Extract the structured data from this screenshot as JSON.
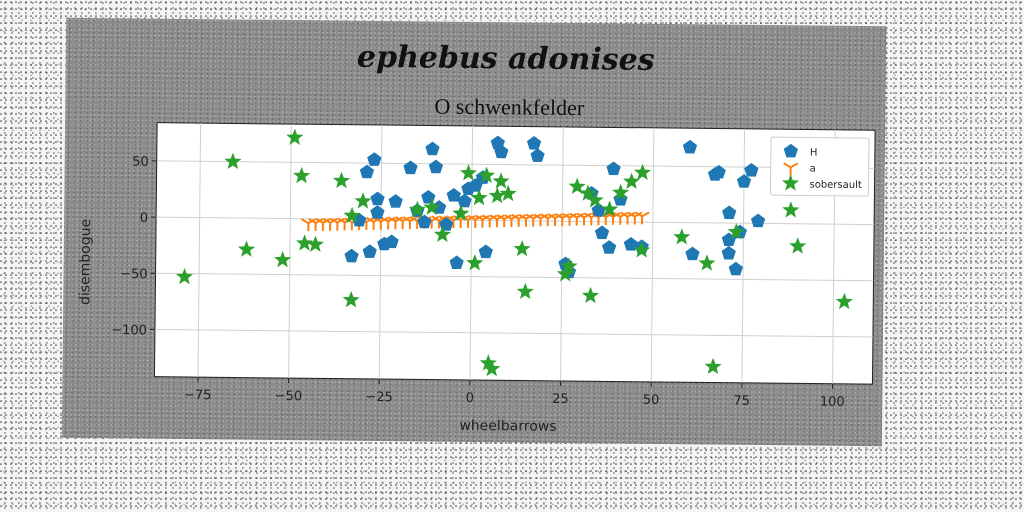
{
  "chart_data": {
    "type": "scatter",
    "title": "ephebus adonises",
    "subtitle": "O schwenkfelder",
    "xlabel": "wheelbarrows",
    "ylabel": "disembogue",
    "xlim": [
      -87,
      111
    ],
    "ylim": [
      -142,
      84
    ],
    "xticks": [
      -75,
      -50,
      -25,
      0,
      25,
      50,
      75,
      100
    ],
    "yticks": [
      50,
      0,
      -50,
      -100
    ],
    "grid": true,
    "legend_position": "top-right",
    "series": [
      {
        "name": "H",
        "marker": "pentagon",
        "color": "#1f77b4",
        "points": [
          [
            -33,
            -33
          ],
          [
            -31,
            -1
          ],
          [
            -28,
            -29
          ],
          [
            -29,
            42
          ],
          [
            -27,
            53
          ],
          [
            -26,
            18
          ],
          [
            -26,
            6
          ],
          [
            -24,
            -22
          ],
          [
            -22,
            -20
          ],
          [
            -21,
            16
          ],
          [
            -17,
            46
          ],
          [
            -15,
            8
          ],
          [
            -13,
            -2
          ],
          [
            -12,
            20
          ],
          [
            -11,
            63
          ],
          [
            -10,
            47
          ],
          [
            -9,
            11
          ],
          [
            -7,
            -4
          ],
          [
            -5,
            22
          ],
          [
            -4,
            -38
          ],
          [
            -2,
            17
          ],
          [
            -1,
            28
          ],
          [
            1,
            31
          ],
          [
            3,
            38
          ],
          [
            4,
            -28
          ],
          [
            7,
            69
          ],
          [
            8,
            61
          ],
          [
            17,
            69
          ],
          [
            18,
            58
          ],
          [
            26,
            -38
          ],
          [
            27,
            -45
          ],
          [
            33,
            25
          ],
          [
            35,
            10
          ],
          [
            36,
            -10
          ],
          [
            38,
            -23
          ],
          [
            39,
            47
          ],
          [
            41,
            20
          ],
          [
            44,
            -20
          ],
          [
            47,
            -22
          ],
          [
            60,
            67
          ],
          [
            61,
            -28
          ],
          [
            67,
            43
          ],
          [
            68,
            45
          ],
          [
            71,
            9
          ],
          [
            71,
            -15
          ],
          [
            71,
            -27
          ],
          [
            73,
            -41
          ],
          [
            74,
            -8
          ],
          [
            75,
            37
          ],
          [
            77,
            47
          ],
          [
            79,
            2
          ]
        ]
      },
      {
        "name": "a",
        "marker": "tri_down",
        "color": "#ff7f0e",
        "points": [
          [
            -45,
            -4
          ],
          [
            -43,
            -3.8
          ],
          [
            -41,
            -3.6
          ],
          [
            -39,
            -3.4
          ],
          [
            -37,
            -3.2
          ],
          [
            -35,
            -3
          ],
          [
            -33,
            -2.8
          ],
          [
            -31,
            -2.6
          ],
          [
            -29,
            -2.4
          ],
          [
            -27,
            -2.2
          ],
          [
            -25,
            -2
          ],
          [
            -23,
            -1.8
          ],
          [
            -21,
            -1.6
          ],
          [
            -19,
            -1.4
          ],
          [
            -17,
            -1.2
          ],
          [
            -15,
            -1
          ],
          [
            -13,
            -0.8
          ],
          [
            -11,
            -0.6
          ],
          [
            -9,
            -0.4
          ],
          [
            -7,
            -0.2
          ],
          [
            -5,
            0
          ],
          [
            -3,
            0.2
          ],
          [
            -1,
            0.4
          ],
          [
            1,
            0.6
          ],
          [
            3,
            0.8
          ],
          [
            5,
            1
          ],
          [
            7,
            1.2
          ],
          [
            9,
            1.4
          ],
          [
            11,
            1.6
          ],
          [
            13,
            1.8
          ],
          [
            15,
            2
          ],
          [
            17,
            2.2
          ],
          [
            19,
            2.4
          ],
          [
            21,
            2.6
          ],
          [
            23,
            2.8
          ],
          [
            25,
            3
          ],
          [
            27,
            3.2
          ],
          [
            29,
            3.4
          ],
          [
            31,
            3.6
          ],
          [
            33,
            3.8
          ],
          [
            35,
            4
          ],
          [
            37,
            4.2
          ],
          [
            39,
            4.4
          ],
          [
            41,
            4.6
          ],
          [
            43,
            4.8
          ],
          [
            45,
            5
          ],
          [
            47,
            5.2
          ]
        ]
      },
      {
        "name": "sobersault",
        "marker": "star",
        "color": "#2ca02c",
        "points": [
          [
            -79,
            -53
          ],
          [
            -66,
            50
          ],
          [
            -62,
            -28
          ],
          [
            -52,
            -37
          ],
          [
            -49,
            72
          ],
          [
            -47,
            38
          ],
          [
            -46,
            -22
          ],
          [
            -43,
            -23
          ],
          [
            -36,
            34
          ],
          [
            -33,
            -72
          ],
          [
            -33,
            3
          ],
          [
            -30,
            16
          ],
          [
            -15,
            9
          ],
          [
            -11,
            11
          ],
          [
            -8,
            -13
          ],
          [
            -3,
            6
          ],
          [
            -1,
            42
          ],
          [
            1,
            -38
          ],
          [
            2,
            20
          ],
          [
            4,
            40
          ],
          [
            5,
            -127
          ],
          [
            6,
            -132
          ],
          [
            7,
            22
          ],
          [
            8,
            35
          ],
          [
            10,
            24
          ],
          [
            14,
            -25
          ],
          [
            15,
            -63
          ],
          [
            26,
            -47
          ],
          [
            27,
            -40
          ],
          [
            29,
            31
          ],
          [
            32,
            25
          ],
          [
            33,
            -66
          ],
          [
            34,
            19
          ],
          [
            38,
            11
          ],
          [
            41,
            26
          ],
          [
            44,
            36
          ],
          [
            47,
            44
          ],
          [
            47,
            -25
          ],
          [
            58,
            -13
          ],
          [
            65,
            -36
          ],
          [
            67,
            -128
          ],
          [
            73,
            -8
          ],
          [
            88,
            12
          ],
          [
            90,
            -20
          ],
          [
            103,
            -69
          ]
        ]
      }
    ]
  }
}
